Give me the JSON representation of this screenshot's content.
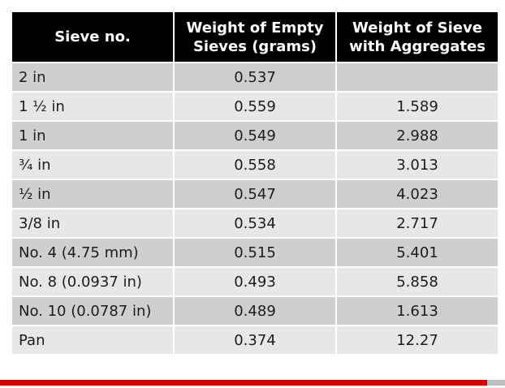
{
  "table": {
    "headers": [
      "Sieve no.",
      "Weight of Empty Sieves (grams)",
      "Weight of Sieve with Aggregates"
    ],
    "rows": [
      [
        "2 in",
        "0.537",
        ""
      ],
      [
        "1 ½ in",
        "0.559",
        "1.589"
      ],
      [
        "1 in",
        "0.549",
        "2.988"
      ],
      [
        "¾ in",
        "0.558",
        "3.013"
      ],
      [
        "½ in",
        "0.547",
        "4.023"
      ],
      [
        "3/8 in",
        "0.534",
        "2.717"
      ],
      [
        "No. 4 (4.75 mm)",
        "0.515",
        "5.401"
      ],
      [
        "No. 8 (0.0937 in)",
        "0.493",
        "5.858"
      ],
      [
        "No. 10 (0.0787 in)",
        "0.489",
        "1.613"
      ],
      [
        "Pan",
        "0.374",
        "12.27"
      ]
    ]
  },
  "colors": {
    "header_background": "#000000",
    "header_text": "#ffffff",
    "row_shade_dark": "#cfcfcf",
    "row_shade_light": "#e7e7e7",
    "progress_bar": "#d40000"
  }
}
